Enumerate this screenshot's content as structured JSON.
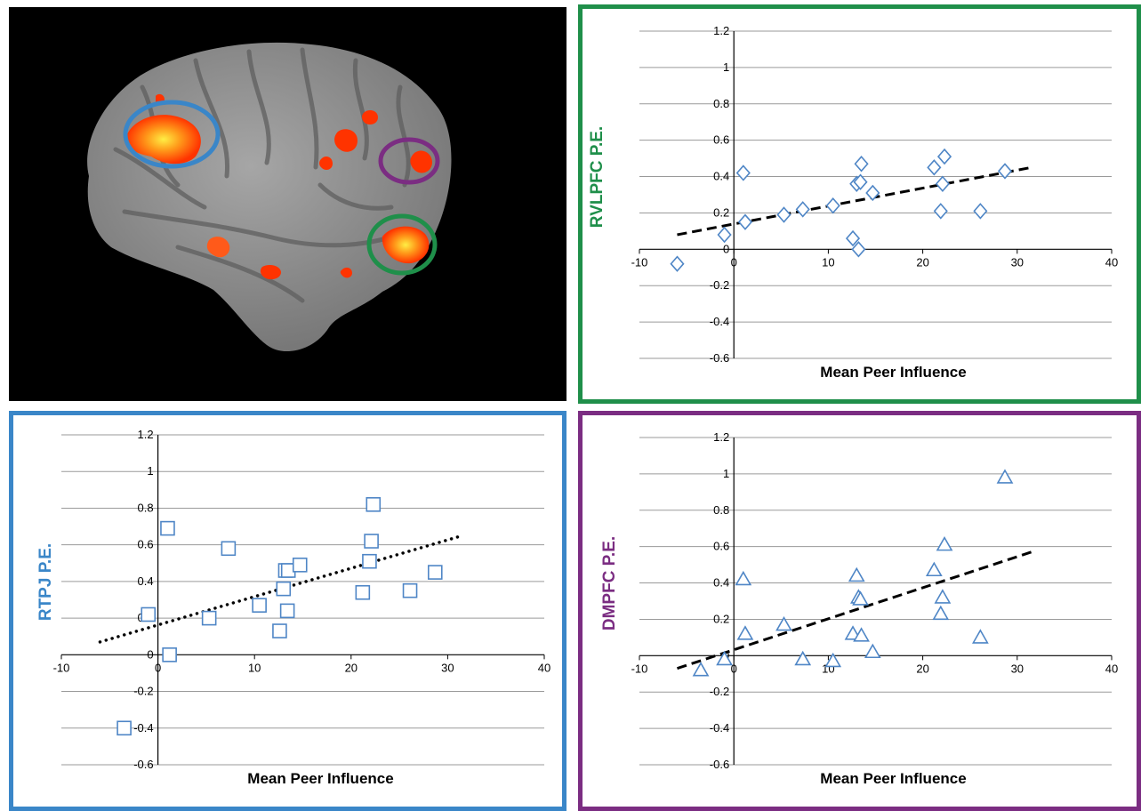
{
  "colors": {
    "rvlpfc": "#1f8f4a",
    "rtpj": "#3a86c8",
    "dmpfc": "#7b2d82",
    "marker": "#4f86c6",
    "brain": "#8e8e8e",
    "activation": "#ff3300"
  },
  "brain": {
    "icon": "brain-activation-map"
  },
  "chart_data": [
    {
      "id": "rvlpfc",
      "type": "scatter",
      "marker": "diamond",
      "trendline": "dashed",
      "xlabel": "Mean Peer Influence",
      "ylabel": "RVLPFC P.E.",
      "xlim": [
        -10,
        40
      ],
      "ylim": [
        -0.6,
        1.2
      ],
      "grid": "horizontal",
      "xticks": [
        "-10",
        "0",
        "10",
        "20",
        "30",
        "40"
      ],
      "yticks": [
        "-0.6",
        "-0.4",
        "-0.2",
        "0",
        "0.2",
        "0.4",
        "0.6",
        "0.8",
        "1",
        "1.2"
      ],
      "points": [
        {
          "x": -6,
          "y": -0.08
        },
        {
          "x": -1,
          "y": 0.08
        },
        {
          "x": 1,
          "y": 0.42
        },
        {
          "x": 1.2,
          "y": 0.15
        },
        {
          "x": 5.3,
          "y": 0.19
        },
        {
          "x": 7.3,
          "y": 0.22
        },
        {
          "x": 10.5,
          "y": 0.24
        },
        {
          "x": 12.6,
          "y": 0.06
        },
        {
          "x": 13,
          "y": 0.36
        },
        {
          "x": 13.2,
          "y": 0.0
        },
        {
          "x": 13.4,
          "y": 0.37
        },
        {
          "x": 13.5,
          "y": 0.47
        },
        {
          "x": 14.7,
          "y": 0.31
        },
        {
          "x": 21.2,
          "y": 0.45
        },
        {
          "x": 21.9,
          "y": 0.21
        },
        {
          "x": 22.1,
          "y": 0.36
        },
        {
          "x": 22.3,
          "y": 0.51
        },
        {
          "x": 26.1,
          "y": 0.21
        },
        {
          "x": 28.7,
          "y": 0.43
        }
      ],
      "trend": [
        {
          "x": -6,
          "y": 0.08
        },
        {
          "x": 31.5,
          "y": 0.45
        }
      ]
    },
    {
      "id": "rtpj",
      "type": "scatter",
      "marker": "square",
      "trendline": "dotted",
      "xlabel": "Mean Peer Influence",
      "ylabel": "RTPJ P.E.",
      "xlim": [
        -10,
        40
      ],
      "ylim": [
        -0.6,
        1.2
      ],
      "grid": "horizontal",
      "xticks": [
        "-10",
        "0",
        "10",
        "20",
        "30",
        "40"
      ],
      "yticks": [
        "-0.6",
        "-0.4",
        "-0.2",
        "0",
        "0.2",
        "0.4",
        "0.6",
        "0.8",
        "1",
        "1.2"
      ],
      "points": [
        {
          "x": -3.5,
          "y": -0.4
        },
        {
          "x": -1,
          "y": 0.22
        },
        {
          "x": 1,
          "y": 0.69
        },
        {
          "x": 1.2,
          "y": 0.0
        },
        {
          "x": 5.3,
          "y": 0.2
        },
        {
          "x": 7.3,
          "y": 0.58
        },
        {
          "x": 10.5,
          "y": 0.27
        },
        {
          "x": 12.6,
          "y": 0.13
        },
        {
          "x": 13,
          "y": 0.36
        },
        {
          "x": 13.2,
          "y": 0.46
        },
        {
          "x": 13.4,
          "y": 0.24
        },
        {
          "x": 13.5,
          "y": 0.46
        },
        {
          "x": 14.7,
          "y": 0.49
        },
        {
          "x": 21.2,
          "y": 0.34
        },
        {
          "x": 21.9,
          "y": 0.51
        },
        {
          "x": 22.1,
          "y": 0.62
        },
        {
          "x": 22.3,
          "y": 0.82
        },
        {
          "x": 26.1,
          "y": 0.35
        },
        {
          "x": 28.7,
          "y": 0.45
        }
      ],
      "trend": [
        {
          "x": -6,
          "y": 0.07
        },
        {
          "x": 31.5,
          "y": 0.65
        }
      ]
    },
    {
      "id": "dmpfc",
      "type": "scatter",
      "marker": "triangle",
      "trendline": "dashed",
      "xlabel": "Mean Peer Influence",
      "ylabel": "DMPFC P.E.",
      "xlim": [
        -10,
        40
      ],
      "ylim": [
        -0.6,
        1.2
      ],
      "grid": "horizontal",
      "xticks": [
        "-10",
        "0",
        "10",
        "20",
        "30",
        "40"
      ],
      "yticks": [
        "-0.6",
        "-0.4",
        "-0.2",
        "0",
        "0.2",
        "0.4",
        "0.6",
        "0.8",
        "1",
        "1.2"
      ],
      "points": [
        {
          "x": -3.5,
          "y": -0.08
        },
        {
          "x": -1,
          "y": -0.02
        },
        {
          "x": 1,
          "y": 0.42
        },
        {
          "x": 1.2,
          "y": 0.12
        },
        {
          "x": 5.3,
          "y": 0.17
        },
        {
          "x": 7.3,
          "y": -0.02
        },
        {
          "x": 10.5,
          "y": -0.03
        },
        {
          "x": 12.6,
          "y": 0.12
        },
        {
          "x": 13,
          "y": 0.44
        },
        {
          "x": 13.2,
          "y": 0.32
        },
        {
          "x": 13.4,
          "y": 0.31
        },
        {
          "x": 13.5,
          "y": 0.11
        },
        {
          "x": 14.7,
          "y": 0.02
        },
        {
          "x": 21.2,
          "y": 0.47
        },
        {
          "x": 21.9,
          "y": 0.23
        },
        {
          "x": 22.1,
          "y": 0.32
        },
        {
          "x": 22.3,
          "y": 0.61
        },
        {
          "x": 26.1,
          "y": 0.1
        },
        {
          "x": 28.7,
          "y": 0.98
        }
      ],
      "trend": [
        {
          "x": -6,
          "y": -0.07
        },
        {
          "x": 31.5,
          "y": 0.57
        }
      ]
    }
  ]
}
